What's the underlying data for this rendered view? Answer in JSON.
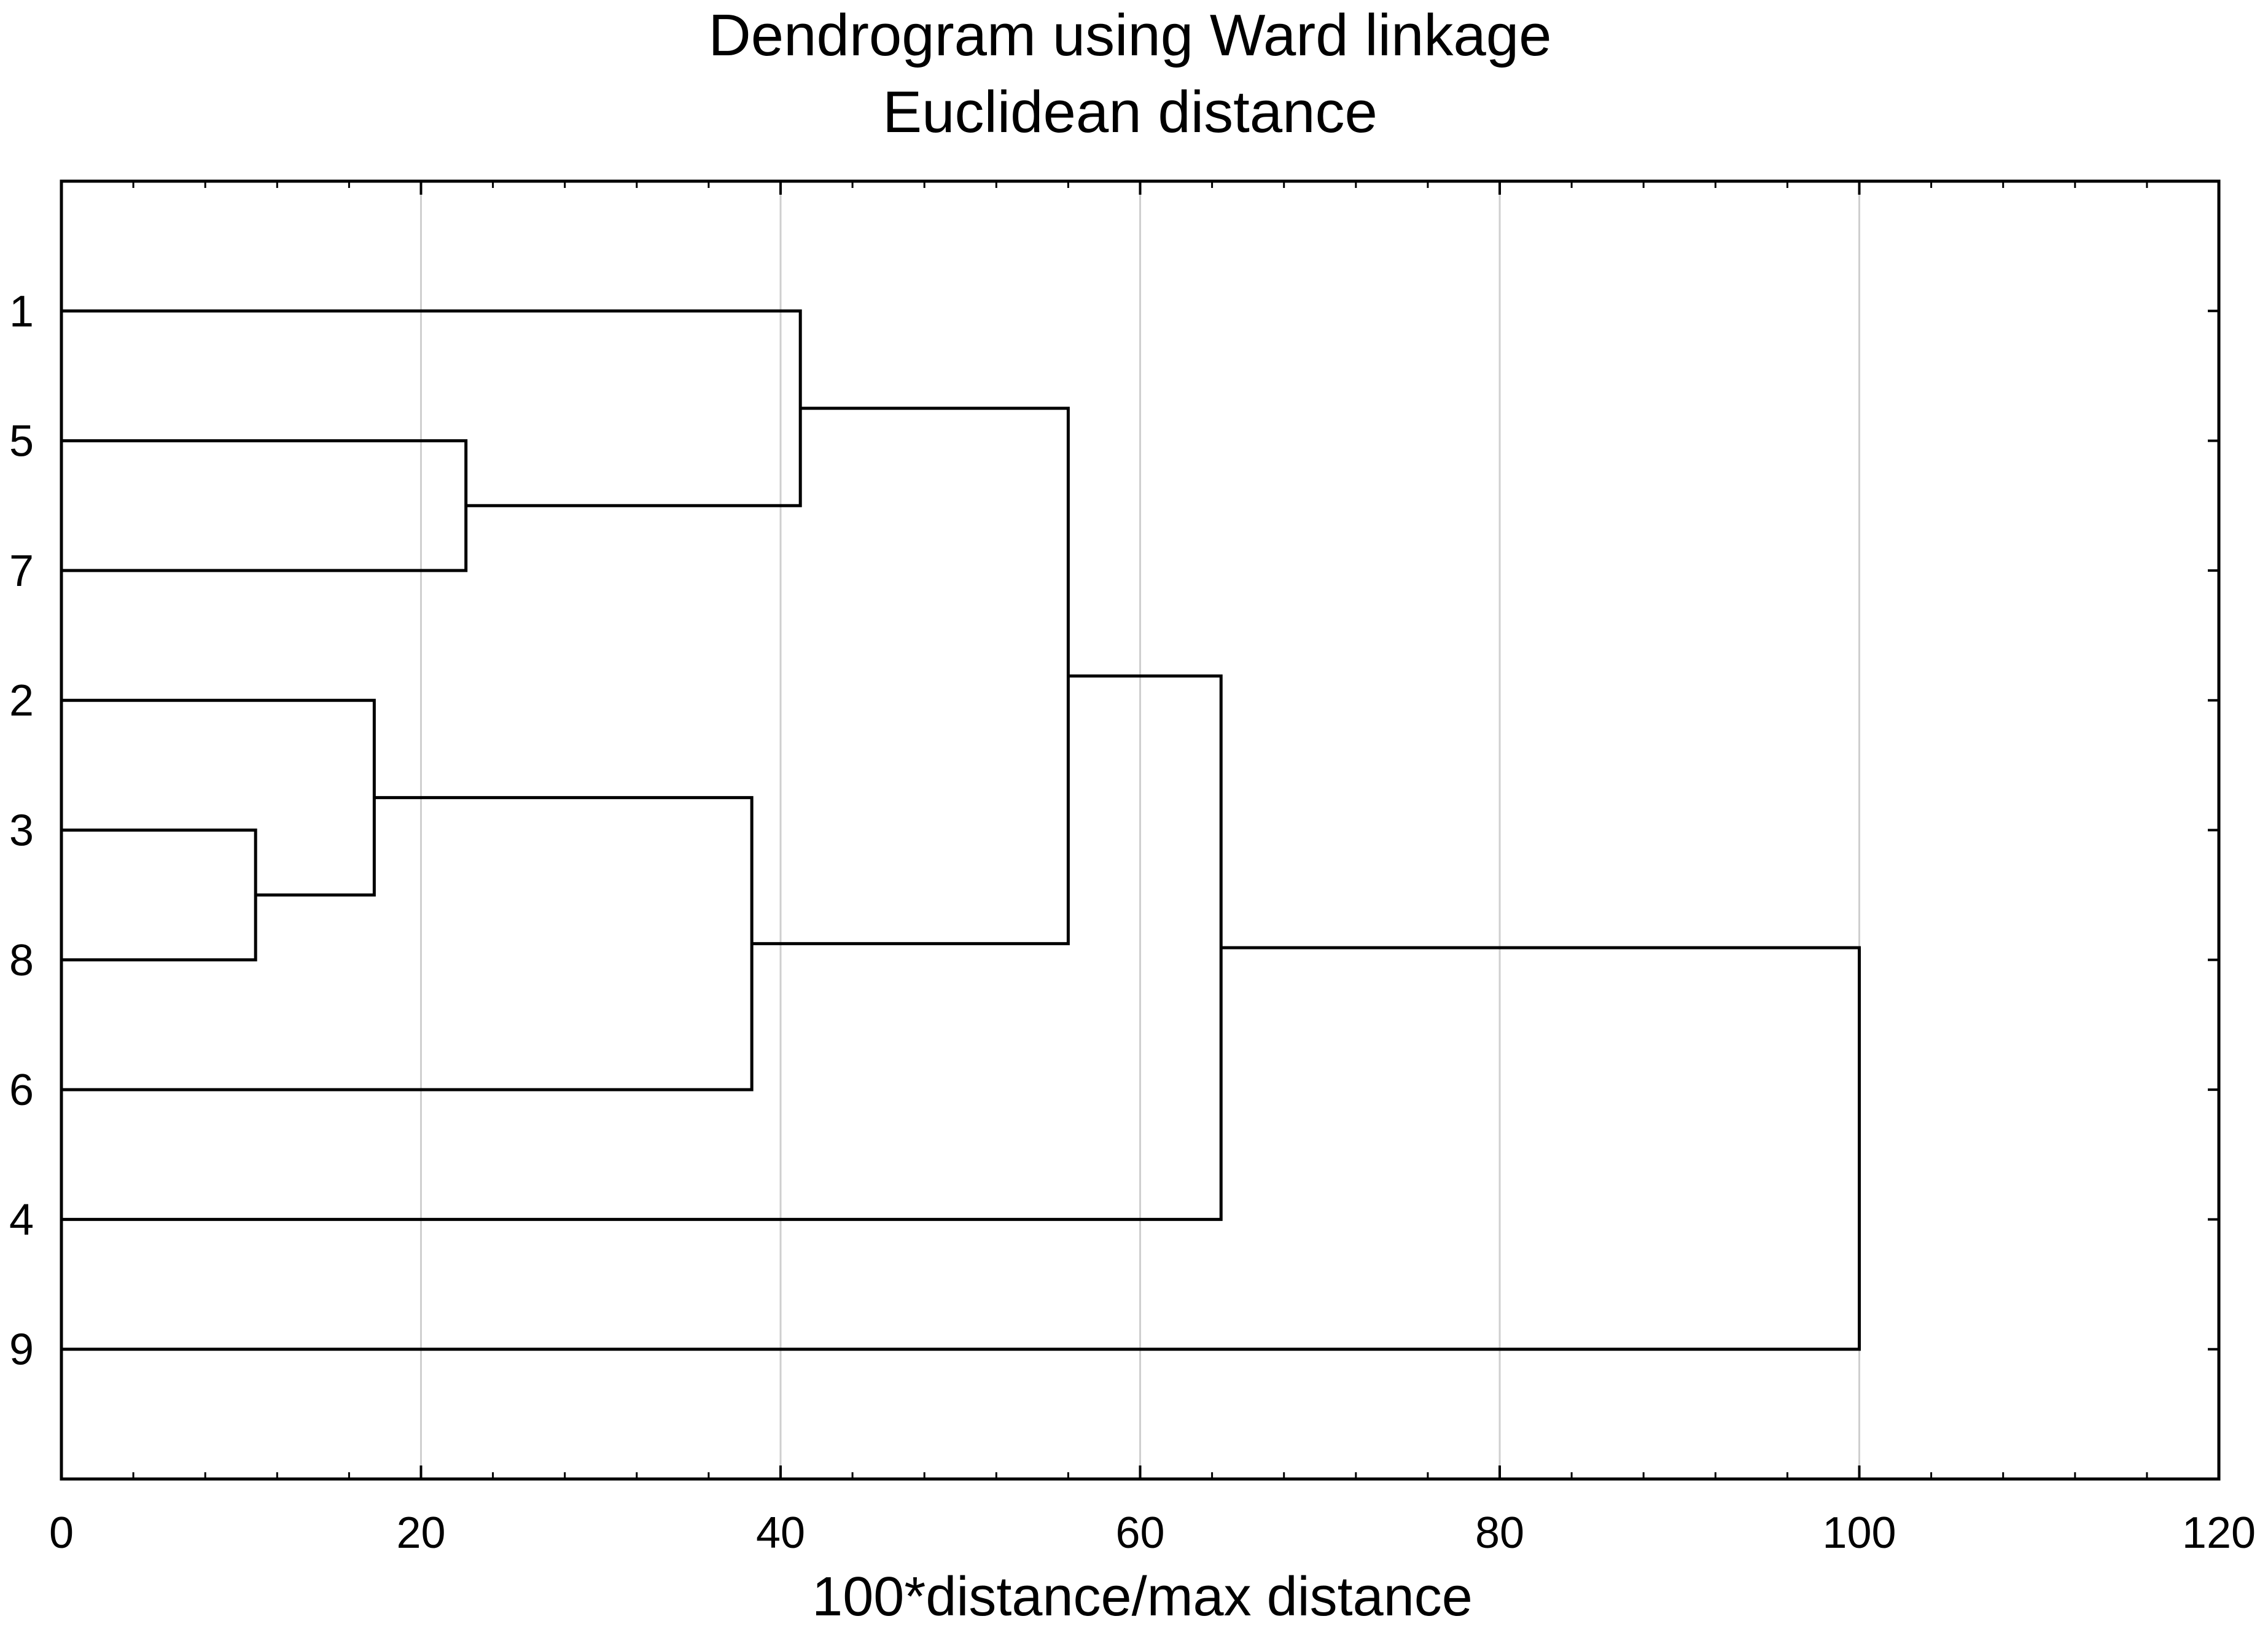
{
  "chart_data": {
    "type": "dendrogram",
    "title": "Dendrogram using Ward linkage",
    "subtitle": "Euclidean distance",
    "xlabel": "100*distance/max distance",
    "ylabel": "",
    "xlim": [
      0,
      120
    ],
    "xticks": [
      "0",
      "20",
      "40",
      "60",
      "80",
      "100",
      "120"
    ],
    "grid": true,
    "leaves": [
      "1",
      "5",
      "7",
      "2",
      "3",
      "8",
      "6",
      "4",
      "9"
    ],
    "merges": [
      {
        "left": "3",
        "right": "8",
        "height": 10.8
      },
      {
        "left": "2",
        "right": "3+8",
        "height": 17.4
      },
      {
        "left": "5",
        "right": "7",
        "height": 22.5
      },
      {
        "left": "2+3+8",
        "right": "6",
        "height": 38.4
      },
      {
        "left": "1",
        "right": "5+7",
        "height": 41.1
      },
      {
        "left": "1+5+7",
        "right": "2+3+8+6",
        "height": 56.0
      },
      {
        "left": "1+5+7+2+3+8+6",
        "right": "4",
        "height": 64.5
      },
      {
        "left": "1+5+7+2+3+8+6+4",
        "right": "9",
        "height": 100.0
      }
    ],
    "colors": {
      "lines": "#000000",
      "grid": "#cfcfcf",
      "frame": "#000000"
    }
  }
}
